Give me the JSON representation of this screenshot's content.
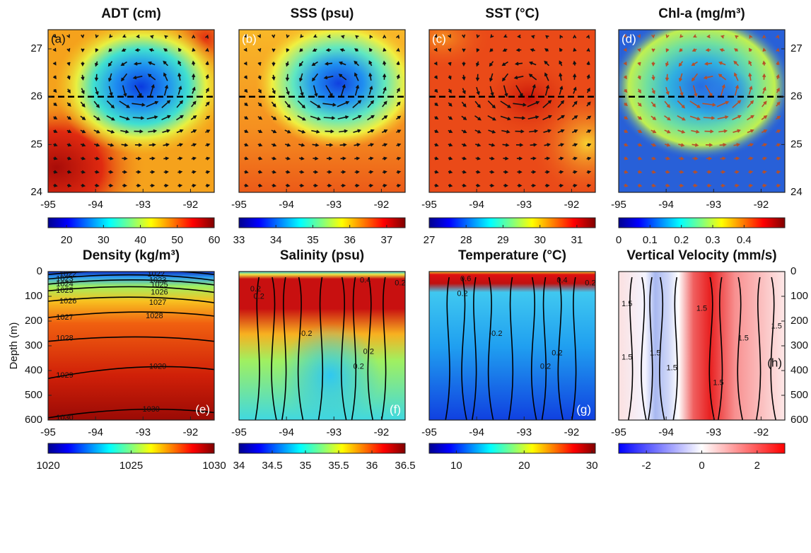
{
  "chart_data": [
    {
      "type": "heatmap",
      "title": "ADT (cm)",
      "label": "(a)",
      "xlim": [
        -95,
        -91.5
      ],
      "xticks": [
        -95,
        -94,
        -93,
        -92
      ],
      "ylim": [
        24,
        27.4
      ],
      "yticks": [
        24,
        25,
        26,
        27
      ],
      "yaxis": "left",
      "section_lat": 26,
      "quiver_color": "#111111",
      "clim": [
        15,
        60
      ],
      "cticks": [
        20,
        30,
        40,
        50,
        60
      ],
      "colormap": "jet"
    },
    {
      "type": "heatmap",
      "title": "SSS (psu)",
      "label": "(b)",
      "xlim": [
        -95,
        -91.5
      ],
      "xticks": [
        -95,
        -94,
        -93,
        -92
      ],
      "ylim": [
        24,
        27.4
      ],
      "section_lat": 26,
      "quiver_color": "#111111",
      "clim": [
        33,
        37.5
      ],
      "cticks": [
        33,
        34,
        35,
        36,
        37
      ],
      "colormap": "jet"
    },
    {
      "type": "heatmap",
      "title": "SST (°C)",
      "label": "(c)",
      "xlim": [
        -95,
        -91.5
      ],
      "xticks": [
        -95,
        -94,
        -93,
        -92
      ],
      "ylim": [
        24,
        27.4
      ],
      "section_lat": 26,
      "quiver_color": "#111111",
      "clim": [
        27,
        31.5
      ],
      "cticks": [
        27,
        28,
        29,
        30,
        31
      ],
      "colormap": "jet"
    },
    {
      "type": "heatmap",
      "title": "Chl-a (mg/m³)",
      "label": "(d)",
      "xlim": [
        -95,
        -91.5
      ],
      "xticks": [
        -95,
        -94,
        -93,
        -92
      ],
      "ylim": [
        24,
        27.4
      ],
      "yticks": [
        24,
        25,
        26,
        27
      ],
      "yaxis": "right",
      "section_lat": 26,
      "quiver_color": "#b5502a",
      "clim": [
        0,
        0.53
      ],
      "cticks": [
        0,
        0.1,
        0.2,
        0.3,
        0.4
      ],
      "colormap": "jet"
    },
    {
      "type": "section",
      "title": "Density (kg/m³)",
      "label": "(e)",
      "xlim": [
        -95,
        -91.5
      ],
      "xticks": [
        -95,
        -94,
        -93,
        -92
      ],
      "ylim": [
        0,
        600
      ],
      "y_reversed": true,
      "yticks": [
        0,
        100,
        200,
        300,
        400,
        500,
        600
      ],
      "yaxis": "left",
      "ylabel": "Depth (m)",
      "clim": [
        1020,
        1030
      ],
      "cticks": [
        1020,
        1025,
        1030
      ],
      "colormap": "jet",
      "contour_labels": [
        1022,
        1023,
        1024,
        1025,
        1026,
        1027,
        1028,
        1029,
        1030,
        1022,
        1023,
        1025,
        1026,
        1027,
        1028,
        1029,
        1030
      ]
    },
    {
      "type": "section",
      "title": "Salinity (psu)",
      "label": "(f)",
      "xlim": [
        -95,
        -91.5
      ],
      "xticks": [
        -95,
        -94,
        -93,
        -92
      ],
      "ylim": [
        0,
        600
      ],
      "y_reversed": true,
      "clim": [
        34,
        36.5
      ],
      "cticks": [
        34,
        34.5,
        35,
        35.5,
        36,
        36.5
      ],
      "colormap": "jet",
      "contour_labels": [
        0.2,
        0.2,
        -0.2,
        0.4,
        0.2,
        0.2,
        0.2
      ]
    },
    {
      "type": "section",
      "title": "Temperature (°C)",
      "label": "(g)",
      "xlim": [
        -95,
        -91.5
      ],
      "xticks": [
        -95,
        -94,
        -93,
        -92
      ],
      "ylim": [
        0,
        600
      ],
      "y_reversed": true,
      "clim": [
        6,
        30.5
      ],
      "cticks": [
        10,
        20,
        30
      ],
      "colormap": "jet",
      "contour_labels": [
        0.6,
        0.2,
        -0.2,
        0.4,
        0.2,
        0.2,
        0.2
      ]
    },
    {
      "type": "section",
      "title": "Vertical Velocity (mm/s)",
      "label": "(h)",
      "xlim": [
        -95,
        -91.5
      ],
      "xticks": [
        -95,
        -94,
        -93,
        -92
      ],
      "ylim": [
        0,
        600
      ],
      "y_reversed": true,
      "yticks": [
        0,
        100,
        200,
        300,
        400,
        500,
        600
      ],
      "yaxis": "right",
      "clim": [
        -3,
        3
      ],
      "cticks": [
        -2,
        0,
        2
      ],
      "colormap": "bwr",
      "contour_labels": [
        1.5,
        1.5,
        1.5,
        1.5,
        1.5,
        1.5,
        1.5,
        1.5
      ]
    }
  ]
}
